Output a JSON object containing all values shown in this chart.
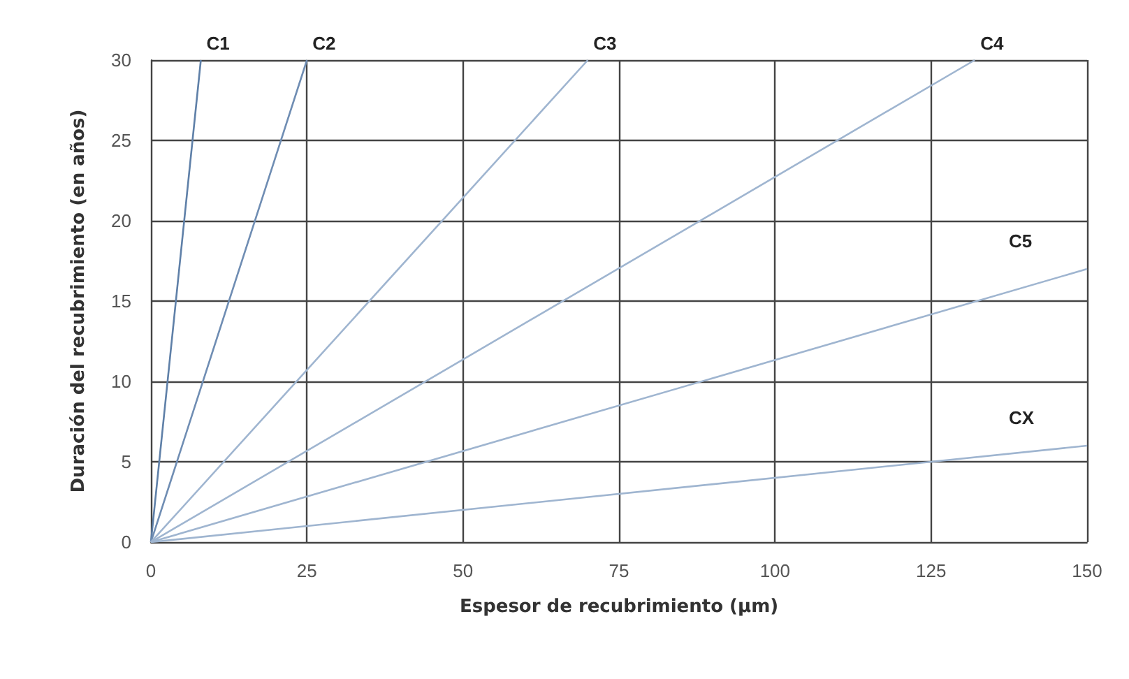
{
  "chart_data": {
    "type": "line",
    "xlabel": "Espesor de recubrimiento (µm)",
    "ylabel": "Duración del recubrimiento (en años)",
    "xlim": [
      0,
      150
    ],
    "xticks": [
      0,
      25,
      50,
      75,
      100,
      125,
      150
    ],
    "ylim": [
      0,
      30
    ],
    "yticks": [
      0,
      5,
      10,
      15,
      20,
      25,
      30
    ],
    "grid": true,
    "legend": false,
    "marker": "none",
    "line_style": "solid",
    "series": [
      {
        "name": "C1",
        "color": "#5f80a8",
        "x": [
          0,
          8
        ],
        "values": [
          0,
          30
        ]
      },
      {
        "name": "C2",
        "color": "#6f8db3",
        "x": [
          0,
          25
        ],
        "values": [
          0,
          30
        ]
      },
      {
        "name": "C3",
        "color": "#9fb5d0",
        "x": [
          0,
          70
        ],
        "values": [
          0,
          30
        ]
      },
      {
        "name": "C4",
        "color": "#9fb5d0",
        "x": [
          0,
          132
        ],
        "values": [
          0,
          30
        ]
      },
      {
        "name": "C5",
        "color": "#9fb5d0",
        "x": [
          0,
          150
        ],
        "values": [
          0,
          17
        ]
      },
      {
        "name": "CX",
        "color": "#9fb5d0",
        "x": [
          0,
          150
        ],
        "values": [
          0,
          6
        ]
      }
    ]
  }
}
